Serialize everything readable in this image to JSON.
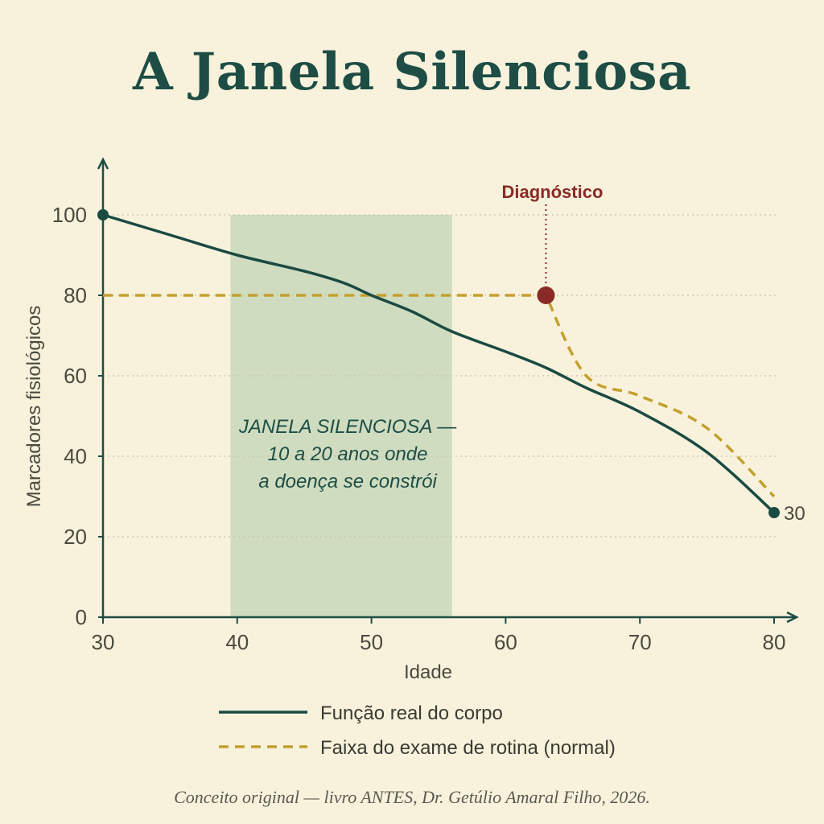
{
  "title": "A Janela Silenciosa",
  "footnote": "Conceito original — livro ANTES, Dr. Getúlio Amaral Filho, 2026.",
  "colors": {
    "background": "#f8f2dc",
    "axis": "#1d4d45",
    "real_function": "#1a4a42",
    "exam_band": "#c4a02e",
    "diagnosis": "#8a2a26",
    "silent_window": "#cfdcbf",
    "grid": "#c9c2a8"
  },
  "chart_data": {
    "type": "line",
    "title": "A Janela Silenciosa",
    "xlabel": "Idade",
    "ylabel": "Marcadores fisiológicos",
    "xlim": [
      30,
      80
    ],
    "ylim": [
      0,
      110
    ],
    "x_ticks": [
      30,
      40,
      50,
      60,
      70,
      80
    ],
    "y_ticks": [
      0,
      20,
      40,
      60,
      80,
      100
    ],
    "grid": "horizontal dotted",
    "legend_position": "bottom",
    "series": [
      {
        "name": "Função real do corpo",
        "style": "solid",
        "x": [
          30,
          35,
          40,
          45,
          48,
          50,
          53,
          56,
          60,
          63,
          66,
          70,
          75,
          80
        ],
        "y": [
          100,
          95,
          90,
          86,
          83,
          80,
          76,
          71,
          66,
          62,
          57,
          51,
          41,
          26
        ]
      },
      {
        "name": "Faixa do exame de rotina (normal)",
        "style": "dashed",
        "x": [
          30,
          63,
          66,
          70,
          75,
          80
        ],
        "y": [
          80,
          80,
          60,
          55,
          47,
          30
        ]
      }
    ],
    "annotations": {
      "silent_window": {
        "x_range": [
          39.5,
          56
        ],
        "y_range": [
          0,
          100
        ],
        "lines": [
          "JANELA SILENCIOSA —",
          "10 a 20 anos onde",
          "a doença se constrói"
        ]
      },
      "diagnosis": {
        "label": "Diagnóstico",
        "x": 63,
        "y": 80
      },
      "end_value": {
        "label": "30",
        "x": 80,
        "y": 26
      }
    }
  }
}
